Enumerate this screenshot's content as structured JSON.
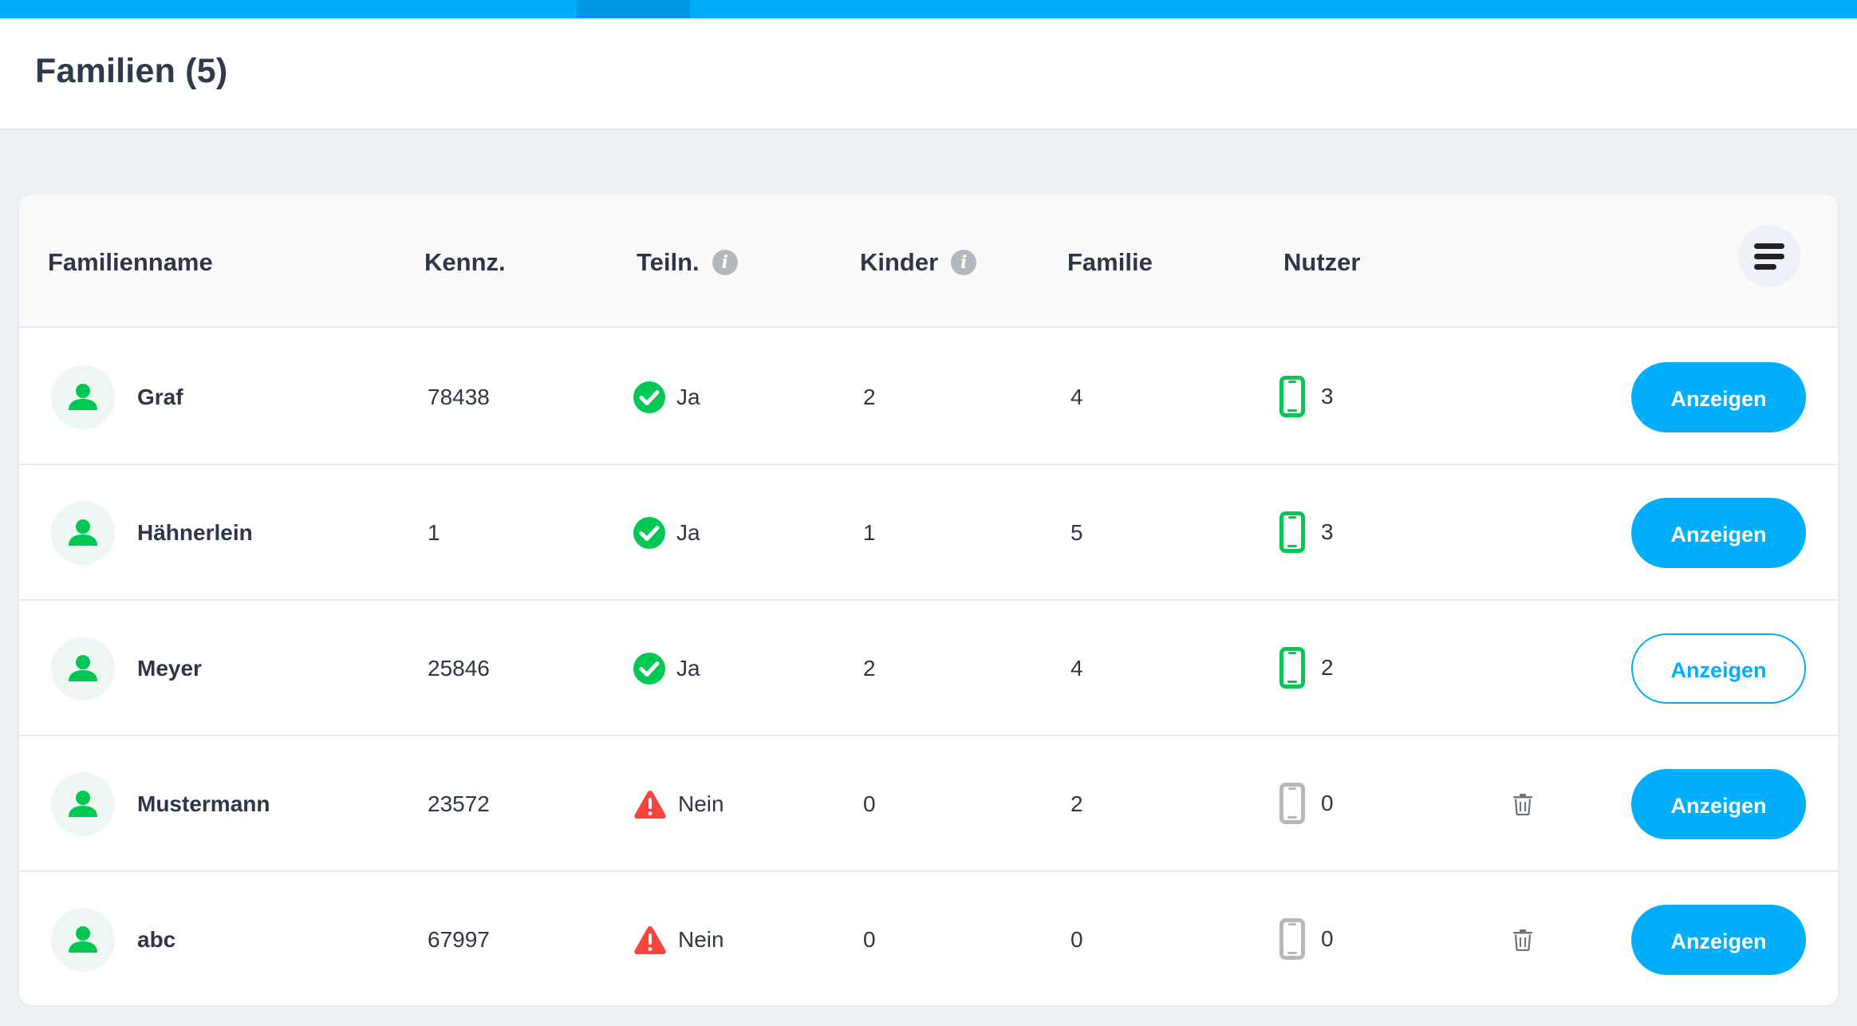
{
  "page": {
    "title": "Familien (5)"
  },
  "table": {
    "columns": [
      {
        "label": "Familienname",
        "info": false
      },
      {
        "label": "Kennz.",
        "info": false
      },
      {
        "label": "Teiln.",
        "info": true
      },
      {
        "label": "Kinder",
        "info": true
      },
      {
        "label": "Familie",
        "info": false
      },
      {
        "label": "Nutzer",
        "info": false
      }
    ],
    "info_glyph": "i",
    "rows": [
      {
        "name": "Graf",
        "kennz": "78438",
        "teiln": "Ja",
        "teiln_status": "ok",
        "kinder": "2",
        "familie": "4",
        "nutzer": "3",
        "nutzer_active": true,
        "deletable": false,
        "action": "Anzeigen",
        "action_style": "filled"
      },
      {
        "name": "Hähnerlein",
        "kennz": "1",
        "teiln": "Ja",
        "teiln_status": "ok",
        "kinder": "1",
        "familie": "5",
        "nutzer": "3",
        "nutzer_active": true,
        "deletable": false,
        "action": "Anzeigen",
        "action_style": "filled"
      },
      {
        "name": "Meyer",
        "kennz": "25846",
        "teiln": "Ja",
        "teiln_status": "ok",
        "kinder": "2",
        "familie": "4",
        "nutzer": "2",
        "nutzer_active": true,
        "deletable": false,
        "action": "Anzeigen",
        "action_style": "outline"
      },
      {
        "name": "Mustermann",
        "kennz": "23572",
        "teiln": "Nein",
        "teiln_status": "warn",
        "kinder": "0",
        "familie": "2",
        "nutzer": "0",
        "nutzer_active": false,
        "deletable": true,
        "action": "Anzeigen",
        "action_style": "filled"
      },
      {
        "name": "abc",
        "kennz": "67997",
        "teiln": "Nein",
        "teiln_status": "warn",
        "kinder": "0",
        "familie": "0",
        "nutzer": "0",
        "nutzer_active": false,
        "deletable": true,
        "action": "Anzeigen",
        "action_style": "filled"
      }
    ]
  },
  "icons": {
    "avatar": "user-icon",
    "ok": "check-circle-icon",
    "warn": "warning-triangle-icon",
    "device": "smartphone-icon",
    "delete": "trash-icon",
    "menu": "menu-icon",
    "info": "info-icon"
  },
  "colors": {
    "accent": "#00aefc",
    "green": "#00c853",
    "red": "#f5453d",
    "grey_device": "#b5b8bd"
  }
}
